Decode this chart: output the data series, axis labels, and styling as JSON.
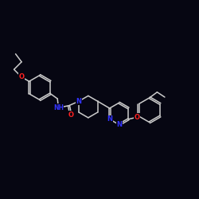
{
  "background_color": "#060612",
  "bond_color": "#cccccc",
  "N_color": "#3333ff",
  "O_color": "#ff2020",
  "lw": 1.1,
  "do": 0.04,
  "fs": 6.0,
  "xlim": [
    0,
    10
  ],
  "ylim": [
    2,
    10
  ]
}
